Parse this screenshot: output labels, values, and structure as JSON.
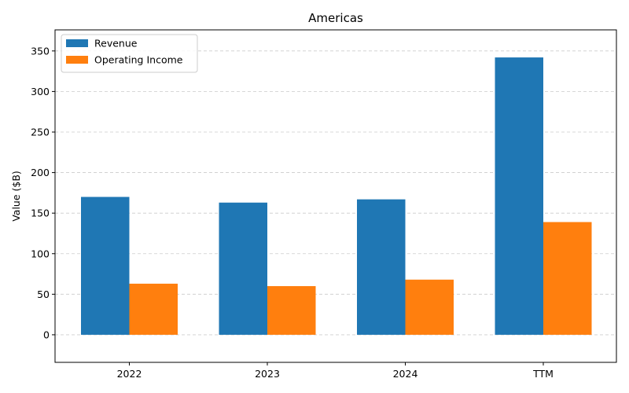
{
  "chart_data": {
    "type": "bar",
    "title": "Americas",
    "xlabel": "",
    "ylabel": "Value ($B)",
    "categories": [
      "2022",
      "2023",
      "2024",
      "TTM"
    ],
    "series": [
      {
        "name": "Revenue",
        "color": "#1f77b4",
        "values": [
          170,
          163,
          167,
          342
        ]
      },
      {
        "name": "Operating Income",
        "color": "#ff7f0e",
        "values": [
          63,
          60,
          68,
          139
        ]
      }
    ],
    "ylim": [
      -34,
      376
    ],
    "yticks": [
      0,
      50,
      100,
      150,
      200,
      250,
      300,
      350
    ],
    "grid": true,
    "legend_position": "top-left"
  }
}
